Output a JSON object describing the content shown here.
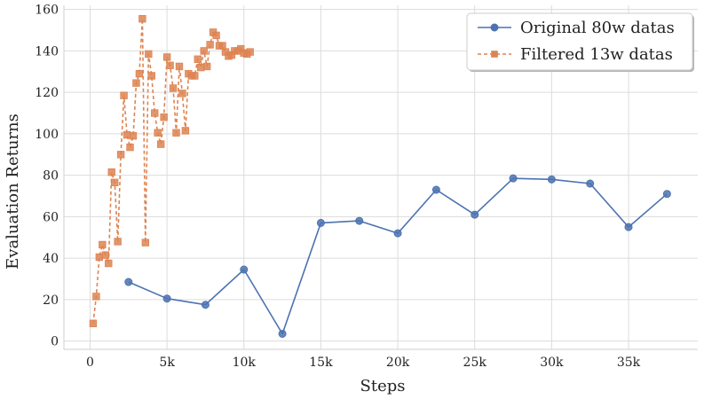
{
  "chart_data": {
    "type": "line",
    "xlabel": "Steps",
    "ylabel": "Evaluation Returns",
    "xlim": [
      -1700,
      39500
    ],
    "ylim": [
      -4,
      162
    ],
    "x_ticks": [
      0,
      5000,
      10000,
      15000,
      20000,
      25000,
      30000,
      35000
    ],
    "x_tick_labels": [
      "0",
      "5k",
      "10k",
      "15k",
      "20k",
      "25k",
      "30k",
      "35k"
    ],
    "y_ticks": [
      0,
      20,
      40,
      60,
      80,
      100,
      120,
      140,
      160
    ],
    "y_tick_labels": [
      "0",
      "20",
      "40",
      "60",
      "80",
      "100",
      "120",
      "140",
      "160"
    ],
    "grid": true,
    "legend_position": "top-right",
    "series": [
      {
        "name": "Original 80w datas",
        "color": "#4c72b0",
        "marker": "circle",
        "line_style": "solid",
        "x": [
          2500,
          5000,
          7500,
          10000,
          12500,
          15000,
          17500,
          20000,
          22500,
          25000,
          27500,
          30000,
          32500,
          35000,
          37500
        ],
        "y": [
          28.5,
          20.5,
          17.5,
          34.5,
          3.5,
          57,
          58,
          52,
          73,
          61,
          78.5,
          78,
          76,
          55,
          71
        ]
      },
      {
        "name": "Filtered 13w datas",
        "color": "#dd8452",
        "marker": "square",
        "line_style": "dashed",
        "x": [
          200,
          400,
          600,
          800,
          1000,
          1200,
          1400,
          1600,
          1800,
          2000,
          2200,
          2400,
          2600,
          2800,
          3000,
          3200,
          3400,
          3600,
          3800,
          4000,
          4200,
          4400,
          4600,
          4800,
          5000,
          5200,
          5400,
          5600,
          5800,
          6000,
          6200,
          6400,
          6600,
          6800,
          7000,
          7200,
          7400,
          7600,
          7800,
          8000,
          8200,
          8400,
          8600,
          8800,
          9000,
          9200,
          9400,
          9600,
          9800,
          10000,
          10200,
          10400
        ],
        "y": [
          8.5,
          21.5,
          40.5,
          46.5,
          41.5,
          37.5,
          81.5,
          76.5,
          48,
          90,
          118.5,
          99.5,
          93.5,
          99,
          124.5,
          129,
          155.5,
          47.5,
          138.5,
          128,
          110,
          100.5,
          95,
          108,
          137,
          133,
          122,
          100.5,
          132.5,
          119.5,
          101.5,
          129,
          128,
          128,
          136,
          132,
          140,
          132.5,
          143,
          149,
          147.5,
          142.5,
          142.5,
          139.5,
          137.5,
          138,
          140,
          140,
          141,
          139,
          138.5,
          139.5
        ]
      }
    ]
  }
}
